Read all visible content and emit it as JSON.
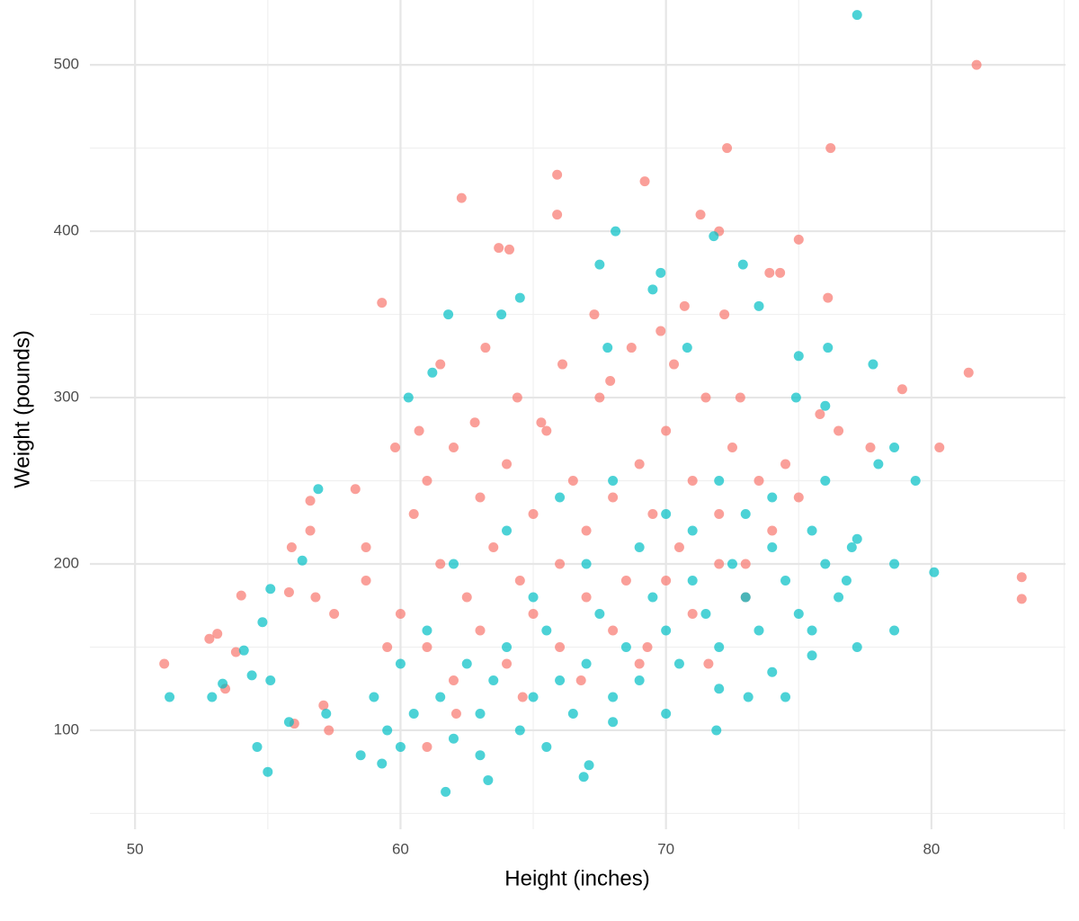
{
  "chart_data": {
    "type": "scatter",
    "x_label": "Height (inches)",
    "y_label": "Weight (pounds)",
    "xlim": [
      48.3,
      85.05
    ],
    "ylim": [
      40.5,
      539
    ],
    "xticks": [
      50,
      60,
      70,
      80
    ],
    "yticks": [
      100,
      200,
      300,
      400,
      500
    ],
    "xminor": [
      55,
      65,
      75,
      85
    ],
    "yminor": [
      50,
      150,
      250,
      350,
      450
    ],
    "grid": true,
    "opacity": 0.7,
    "series": [
      {
        "color": "#F8766D",
        "x": [
          51.1,
          52.8,
          53.1,
          53.4,
          53.8,
          54,
          55.8,
          55.9,
          56.6,
          56.6,
          56.8,
          57.1,
          57.5,
          58.3,
          58.7,
          59.3,
          62.3,
          63.7,
          64.1,
          65.9,
          65.9,
          69.2,
          71.3,
          72.3,
          72,
          75,
          76.2,
          76.1,
          78.9,
          80.3,
          81.4,
          81.7,
          83.4,
          83.4,
          77.7,
          61,
          56,
          57.3,
          60.5,
          61,
          61.5,
          62,
          62.5,
          63,
          63.5,
          64,
          64.5,
          65,
          65.5,
          66,
          66.5,
          67,
          67.5,
          68,
          68.5,
          69,
          69.5,
          70,
          70.5,
          71,
          71.5,
          72,
          72.5,
          73,
          73.5,
          74,
          74.5,
          75,
          60,
          61,
          62,
          63,
          64,
          65,
          66,
          67,
          68,
          69,
          70,
          71,
          72,
          73,
          61.5,
          63.2,
          64.4,
          66.1,
          67.3,
          68.7,
          69.8,
          70.7,
          72.2,
          73.9,
          74.3,
          62.8,
          65.3,
          67.9,
          70.3,
          72.8,
          75.8,
          76.5,
          59.8,
          60.7,
          58.7,
          59.5,
          62.1,
          64.6,
          66.8,
          69.3,
          71.6
        ],
        "values": [
          140,
          155,
          158,
          125,
          147,
          181,
          183,
          210,
          238,
          220,
          180,
          115,
          170,
          245,
          210,
          357,
          420,
          390,
          389,
          434,
          410,
          430,
          410,
          450,
          400,
          395,
          450,
          360,
          305,
          270,
          315,
          500,
          192,
          179,
          270,
          90,
          104,
          100,
          230,
          250,
          200,
          270,
          180,
          240,
          210,
          260,
          190,
          230,
          280,
          200,
          250,
          220,
          300,
          240,
          190,
          260,
          230,
          280,
          210,
          250,
          300,
          230,
          270,
          200,
          250,
          220,
          260,
          240,
          170,
          150,
          130,
          160,
          140,
          170,
          150,
          180,
          160,
          140,
          190,
          170,
          200,
          180,
          320,
          330,
          300,
          320,
          350,
          330,
          340,
          355,
          350,
          375,
          375,
          285,
          285,
          310,
          320,
          300,
          290,
          280,
          270,
          280,
          190,
          150,
          110,
          120,
          130,
          150,
          140
        ]
      },
      {
        "color": "#00BFC4",
        "x": [
          51.3,
          52.9,
          53.3,
          54.1,
          54.4,
          54.6,
          54.8,
          55,
          55.1,
          55.1,
          55.8,
          56.3,
          56.9,
          57.2,
          59.3,
          60.3,
          61.7,
          61.8,
          63.3,
          66.9,
          67.1,
          68.1,
          71.8,
          72.9,
          77.2,
          77.8,
          78.6,
          78.6,
          78.6,
          79.4,
          80.1,
          71.9,
          73.1,
          76.1,
          77.2,
          75.5,
          59,
          59.5,
          60,
          60.5,
          61,
          61.5,
          62,
          62.5,
          63,
          63.5,
          64,
          64.5,
          65,
          65.5,
          66,
          66.5,
          67,
          67.5,
          68,
          68.5,
          69,
          69.5,
          70,
          70.5,
          71,
          71.5,
          72,
          72.5,
          73,
          73.5,
          74,
          74.5,
          75,
          75.5,
          76,
          76.5,
          77,
          62,
          64,
          66,
          68,
          70,
          72,
          74,
          76,
          65,
          67,
          69,
          71,
          73,
          60,
          58.5,
          63,
          65.5,
          68,
          70,
          72,
          74,
          74.5,
          75.5,
          76.8,
          77.2,
          78,
          76,
          75,
          69.5,
          69.8,
          67.5,
          64.5,
          61.2,
          63.8,
          67.8,
          70.8,
          73.5,
          74.9
        ],
        "values": [
          120,
          120,
          128,
          148,
          133,
          90,
          165,
          75,
          185,
          130,
          105,
          202,
          245,
          110,
          80,
          300,
          63,
          350,
          70,
          72,
          79,
          400,
          397,
          380,
          530,
          320,
          270,
          200,
          160,
          250,
          195,
          100,
          120,
          330,
          150,
          145,
          120,
          100,
          140,
          110,
          160,
          120,
          95,
          140,
          110,
          130,
          150,
          100,
          120,
          160,
          130,
          110,
          140,
          170,
          120,
          150,
          130,
          180,
          160,
          140,
          190,
          170,
          150,
          200,
          180,
          160,
          210,
          190,
          170,
          220,
          200,
          180,
          210,
          200,
          220,
          240,
          250,
          230,
          250,
          240,
          250,
          180,
          200,
          210,
          220,
          230,
          90,
          85,
          85,
          90,
          105,
          110,
          125,
          135,
          120,
          160,
          190,
          215,
          260,
          295,
          325,
          365,
          375,
          380,
          360,
          315,
          350,
          330,
          330,
          355,
          300
        ]
      }
    ]
  }
}
